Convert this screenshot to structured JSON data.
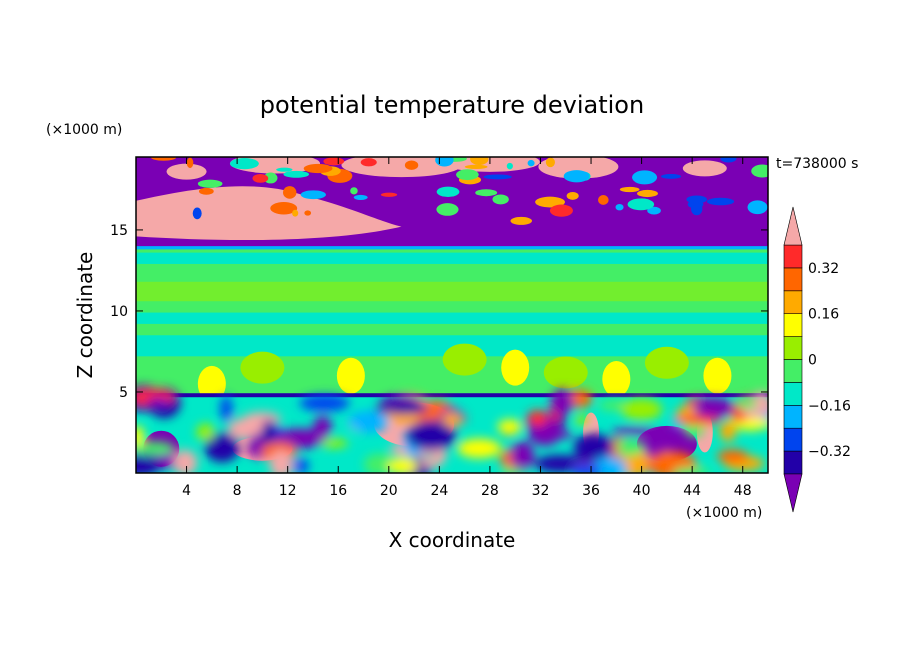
{
  "chart_data": {
    "type": "heatmap",
    "title": "potential temperature deviation",
    "time_label": "t=738000 s",
    "xlabel": "X coordinate",
    "ylabel": "Z coordinate",
    "x_unit": "(×1000 m)",
    "y_unit": "(×1000 m)",
    "xlim": [
      0,
      50
    ],
    "ylim": [
      0,
      19.5
    ],
    "x_ticks": [
      "4",
      "8",
      "12",
      "16",
      "20",
      "24",
      "28",
      "32",
      "36",
      "40",
      "44",
      "48"
    ],
    "y_ticks": [
      "5",
      "10",
      "15"
    ],
    "colorbar": {
      "labels": [
        "0.32",
        "0.16",
        "0",
        "−0.16",
        "−0.32"
      ],
      "label_values": [
        0.32,
        0.16,
        0,
        -0.16,
        -0.32
      ],
      "levels": [
        -0.4,
        -0.32,
        -0.24,
        -0.16,
        -0.08,
        0,
        0.08,
        0.16,
        0.24,
        0.32,
        0.4
      ],
      "colors": [
        "#7a00b4",
        "#2200a8",
        "#0044ee",
        "#00b4ff",
        "#00e8c8",
        "#44ee66",
        "#99ee00",
        "#ffff00",
        "#ffaa00",
        "#ff6600",
        "#ff2a2a",
        "#f5a8a8"
      ]
    },
    "layers": [
      {
        "z_range": [
          0,
          4.8
        ],
        "description_value": "mixed -0.4 to 0.4"
      },
      {
        "z_range": [
          4.8,
          14
        ],
        "description_value": "about 0 to 0.08"
      },
      {
        "z_range": [
          14,
          19.5
        ],
        "description_value": "mixed below -0.4 and above 0.4"
      }
    ]
  }
}
